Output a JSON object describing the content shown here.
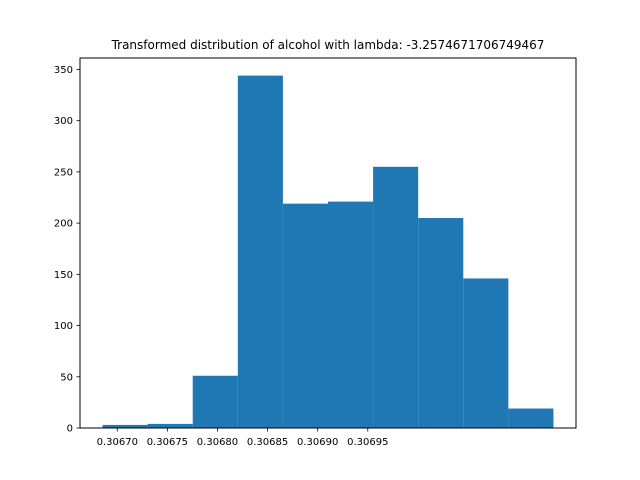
{
  "chart_data": {
    "type": "bar",
    "title": "Transformed distribution of alcohol with lambda: -3.2574671706749467",
    "xlabel": "",
    "ylabel": "",
    "bins": [
      {
        "x0": 0.3066853,
        "x1": 0.3067303,
        "value": 3
      },
      {
        "x0": 0.3067303,
        "x1": 0.3067753,
        "value": 4
      },
      {
        "x0": 0.3067753,
        "x1": 0.3068203,
        "value": 51
      },
      {
        "x0": 0.3068203,
        "x1": 0.3068653,
        "value": 344
      },
      {
        "x0": 0.3068653,
        "x1": 0.3069103,
        "value": 219
      },
      {
        "x0": 0.3069103,
        "x1": 0.3069553,
        "value": 221
      },
      {
        "x0": 0.3069553,
        "x1": 0.3070003,
        "value": 255
      },
      {
        "x0": 0.3070003,
        "x1": 0.3070453,
        "value": 205
      },
      {
        "x0": 0.3070453,
        "x1": 0.3070903,
        "value": 146
      },
      {
        "x0": 0.3070903,
        "x1": 0.3071353,
        "value": 19
      }
    ],
    "xlim": [
      0.3066628,
      0.3071578
    ],
    "ylim": [
      0,
      361.2
    ],
    "xticks": [
      0.3067,
      0.30675,
      0.3068,
      0.30685,
      0.3069,
      0.30695
    ],
    "xtick_labels": [
      "0.30670",
      "0.30675",
      "0.30680",
      "0.30685",
      "0.30690",
      "0.30695"
    ],
    "yticks": [
      0,
      50,
      100,
      150,
      200,
      250,
      300,
      350
    ],
    "ytick_labels": [
      "0",
      "50",
      "100",
      "150",
      "200",
      "250",
      "300",
      "350"
    ],
    "bar_color": "#1f77b4",
    "grid": false,
    "legend": "none"
  }
}
